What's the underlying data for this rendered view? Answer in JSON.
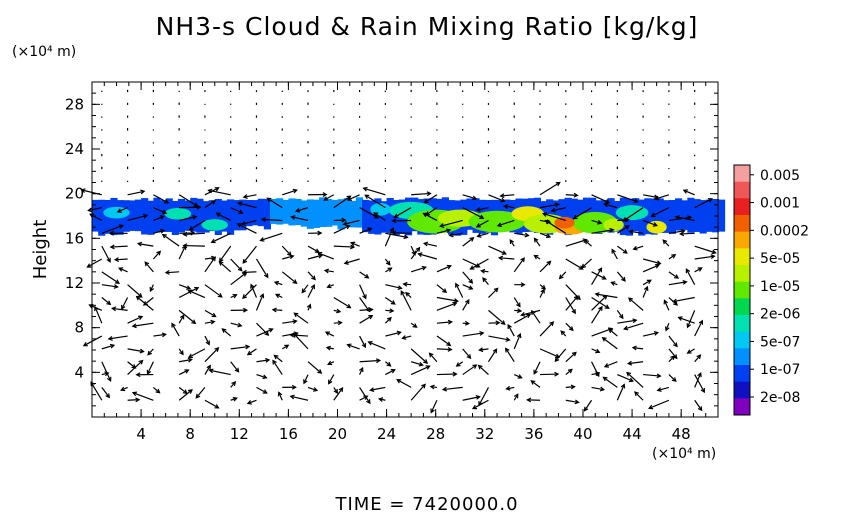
{
  "chart_data": {
    "type": "heatmap",
    "title": "NH3-s Cloud & Rain Mixing Ratio [kg/kg]",
    "ylabel": "Height",
    "y_unit": "(×10⁴ m)",
    "x_unit": "(×10⁴ m)",
    "xlim": [
      0,
      51
    ],
    "ylim": [
      0,
      30
    ],
    "x_ticks": [
      4,
      8,
      12,
      16,
      20,
      24,
      28,
      32,
      36,
      40,
      44,
      48
    ],
    "y_ticks": [
      4,
      8,
      12,
      16,
      20,
      24,
      28
    ],
    "x_tick_labels": [
      "4",
      "8",
      "12",
      "16",
      "20",
      "24",
      "28",
      "32",
      "36",
      "40",
      "44",
      "48"
    ],
    "y_tick_labels": [
      "4",
      "8",
      "12",
      "16",
      "20",
      "24",
      "28"
    ],
    "colorbar": {
      "labels": [
        "0.005",
        "0.001",
        "0.0002",
        "5e-05",
        "1e-05",
        "2e-06",
        "5e-07",
        "1e-07",
        "2e-08"
      ],
      "colors": [
        "#f4a0a0",
        "#f05858",
        "#e82020",
        "#f06000",
        "#f8a800",
        "#e8e800",
        "#b8f000",
        "#60e800",
        "#00d850",
        "#00e0b0",
        "#00c8f0",
        "#0090ff",
        "#0040f0",
        "#1010c0",
        "#8000c0"
      ]
    },
    "cloud_layer": {
      "bottom_height": 16.5,
      "top_height": 19.5,
      "max_region_x": [
        28,
        48
      ]
    },
    "overlay": "wind vectors"
  },
  "footer": {
    "time_label": "TIME = 7420000.0"
  }
}
